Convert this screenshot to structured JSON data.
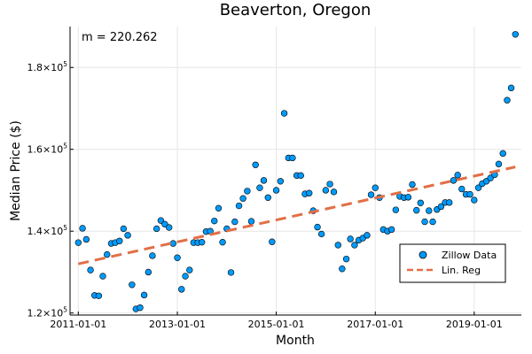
{
  "chart_data": {
    "type": "scatter",
    "title": "Beaverton, Oregon",
    "xlabel": "Month",
    "ylabel": "Median Price ($)",
    "annotation": "m = 220.262",
    "x_ticks": [
      "2011-01-01",
      "2013-01-01",
      "2015-01-01",
      "2017-01-01",
      "2019-01-01"
    ],
    "y_ticks": [
      {
        "mantissa": "1.2",
        "exponent": "5"
      },
      {
        "mantissa": "1.4",
        "exponent": "5"
      },
      {
        "mantissa": "1.6",
        "exponent": "5"
      },
      {
        "mantissa": "1.8",
        "exponent": "5"
      }
    ],
    "y_tick_values": [
      120000,
      140000,
      160000,
      180000
    ],
    "xlim": [
      "2010-11-01",
      "2019-12-15"
    ],
    "ylim": [
      119500,
      190000
    ],
    "grid": true,
    "legend_position": "bottom-right",
    "series": [
      {
        "name": "Zillow Data",
        "kind": "scatter",
        "color": "#009af9",
        "x": [
          "2011-01-01",
          "2011-02-01",
          "2011-03-01",
          "2011-04-01",
          "2011-05-01",
          "2011-06-01",
          "2011-07-01",
          "2011-08-01",
          "2011-09-01",
          "2011-10-01",
          "2011-11-01",
          "2011-12-01",
          "2012-01-01",
          "2012-02-01",
          "2012-03-01",
          "2012-04-01",
          "2012-05-01",
          "2012-06-01",
          "2012-07-01",
          "2012-08-01",
          "2012-09-01",
          "2012-10-01",
          "2012-11-01",
          "2012-12-01",
          "2013-01-01",
          "2013-02-01",
          "2013-03-01",
          "2013-04-01",
          "2013-05-01",
          "2013-06-01",
          "2013-07-01",
          "2013-08-01",
          "2013-09-01",
          "2013-10-01",
          "2013-11-01",
          "2013-12-01",
          "2014-01-01",
          "2014-02-01",
          "2014-03-01",
          "2014-04-01",
          "2014-05-01",
          "2014-06-01",
          "2014-07-01",
          "2014-08-01",
          "2014-09-01",
          "2014-10-01",
          "2014-11-01",
          "2014-12-01",
          "2015-01-01",
          "2015-02-01",
          "2015-03-01",
          "2015-04-01",
          "2015-05-01",
          "2015-06-01",
          "2015-07-01",
          "2015-08-01",
          "2015-09-01",
          "2015-10-01",
          "2015-11-01",
          "2015-12-01",
          "2016-01-01",
          "2016-02-01",
          "2016-03-01",
          "2016-04-01",
          "2016-05-01",
          "2016-06-01",
          "2016-07-01",
          "2016-08-01",
          "2016-09-01",
          "2016-10-01",
          "2016-11-01",
          "2016-12-01",
          "2017-01-01",
          "2017-02-01",
          "2017-03-01",
          "2017-04-01",
          "2017-05-01",
          "2017-06-01",
          "2017-07-01",
          "2017-08-01",
          "2017-09-01",
          "2017-10-01",
          "2017-11-01",
          "2017-12-01",
          "2018-01-01",
          "2018-02-01",
          "2018-03-01",
          "2018-04-01",
          "2018-05-01",
          "2018-06-01",
          "2018-07-01",
          "2018-08-01",
          "2018-09-01",
          "2018-10-01",
          "2018-11-01",
          "2018-12-01",
          "2019-01-01",
          "2019-02-01",
          "2019-03-01",
          "2019-04-01",
          "2019-05-01",
          "2019-06-01",
          "2019-07-01",
          "2019-08-01",
          "2019-09-01",
          "2019-10-01",
          "2019-11-01"
        ],
        "y": [
          137200,
          140700,
          138000,
          130500,
          124300,
          124200,
          129000,
          134300,
          137000,
          137200,
          137600,
          140600,
          139000,
          126900,
          121000,
          121300,
          124400,
          130000,
          134000,
          140600,
          142600,
          141700,
          140900,
          137000,
          133500,
          125800,
          129000,
          130500,
          137200,
          137200,
          137300,
          139900,
          140000,
          142500,
          145600,
          137300,
          140600,
          129900,
          142300,
          146200,
          148000,
          149800,
          142400,
          156200,
          150600,
          152400,
          148200,
          137400,
          150000,
          152200,
          168800,
          157900,
          157900,
          153600,
          153600,
          149100,
          149300,
          145000,
          141000,
          139300,
          150000,
          151500,
          149600,
          136600,
          130800,
          133200,
          138100,
          136600,
          137800,
          138300,
          139000,
          148900,
          150600,
          148200,
          140400,
          140000,
          140400,
          145200,
          148500,
          148200,
          148300,
          151400,
          145100,
          146900,
          142300,
          145000,
          142300,
          145300,
          146000,
          147000,
          147000,
          152400,
          153700,
          150300,
          149000,
          149000,
          147600,
          150600,
          151600,
          152200,
          153000,
          153800,
          156400,
          159000,
          172000,
          175000,
          188100
        ]
      },
      {
        "name": "Lin. Reg",
        "kind": "line",
        "color": "#e26f46",
        "dashed": true,
        "x": [
          "2011-01-01",
          "2019-11-01"
        ],
        "y": [
          132000,
          155700
        ]
      }
    ]
  }
}
